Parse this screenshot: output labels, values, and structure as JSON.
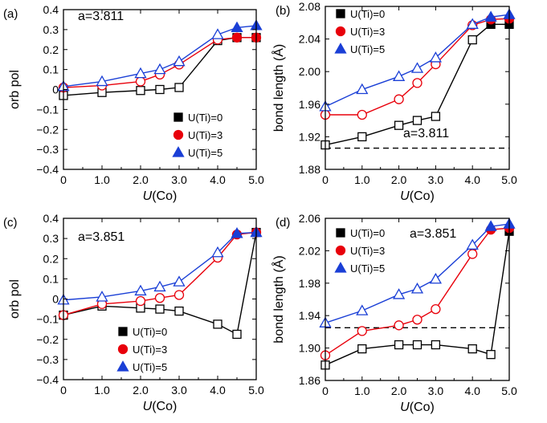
{
  "chart_data": [
    {
      "panel_label": "(a)",
      "type": "line",
      "annotation": "a=3.811",
      "xlabel_italic": "U",
      "xlabel_rest": "(Co)",
      "ylabel": "orb pol",
      "xlim": [
        0,
        5
      ],
      "ylim": [
        -0.4,
        0.4
      ],
      "xticks": [
        "0",
        "1.0",
        "2.0",
        "3.0",
        "4.0",
        "5.0"
      ],
      "xtick_values": [
        0,
        1,
        2,
        3,
        4,
        5
      ],
      "yticks": [
        "−0.4",
        "−0.3",
        "−0.2",
        "−0.1",
        "0",
        "0.1",
        "0.2",
        "0.3",
        "0.4"
      ],
      "ytick_values": [
        -0.4,
        -0.3,
        -0.2,
        -0.1,
        0,
        0.1,
        0.2,
        0.3,
        0.4
      ],
      "legend_position": "bottom-right",
      "x": [
        0,
        1,
        2,
        2.5,
        3,
        4,
        4.5,
        5
      ],
      "series": [
        {
          "name": "U(Ti)=0",
          "color": "#000000",
          "marker": "square",
          "filled_from": 6,
          "values": [
            -0.03,
            -0.015,
            -0.005,
            0.0,
            0.01,
            0.245,
            0.26,
            0.26
          ]
        },
        {
          "name": "U(Ti)=3",
          "color": "#e8000b",
          "marker": "circle",
          "filled_from": 6,
          "values": [
            0.01,
            0.02,
            0.04,
            0.075,
            0.125,
            0.25,
            0.26,
            0.26
          ]
        },
        {
          "name": "U(Ti)=5",
          "color": "#1a3fd6",
          "marker": "triangle",
          "filled_from": 6,
          "values": [
            0.015,
            0.04,
            0.08,
            0.1,
            0.14,
            0.275,
            0.31,
            0.32
          ]
        }
      ]
    },
    {
      "panel_label": "(b)",
      "type": "line",
      "annotation": "a=3.811",
      "xlabel_italic": "U",
      "xlabel_rest": "(Co)",
      "ylabel": "bond length (Å)",
      "xlim": [
        0,
        5
      ],
      "ylim": [
        1.88,
        2.08
      ],
      "xticks": [
        "0",
        "1.0",
        "2.0",
        "3.0",
        "4.0",
        "5.0"
      ],
      "xtick_values": [
        0,
        1,
        2,
        3,
        4,
        5
      ],
      "yticks": [
        "1.88",
        "1.92",
        "1.96",
        "2.00",
        "2.04",
        "2.08"
      ],
      "ytick_values": [
        1.88,
        1.92,
        1.96,
        2.0,
        2.04,
        2.08
      ],
      "legend_position": "top-left",
      "reference_line": 1.906,
      "x": [
        0,
        1,
        2,
        2.5,
        3,
        4,
        4.5,
        5
      ],
      "series": [
        {
          "name": "U(Ti)=0",
          "color": "#000000",
          "marker": "square",
          "filled_from": 6,
          "values": [
            1.91,
            1.92,
            1.934,
            1.94,
            1.945,
            2.039,
            2.058,
            2.058
          ]
        },
        {
          "name": "U(Ti)=3",
          "color": "#e8000b",
          "marker": "circle",
          "filled_from": 6,
          "values": [
            1.947,
            1.947,
            1.966,
            1.986,
            2.009,
            2.057,
            2.064,
            2.065
          ]
        },
        {
          "name": "U(Ti)=5",
          "color": "#1a3fd6",
          "marker": "triangle",
          "filled_from": 6,
          "values": [
            1.957,
            1.978,
            1.994,
            2.004,
            2.017,
            2.058,
            2.067,
            2.07
          ]
        }
      ]
    },
    {
      "panel_label": "(c)",
      "type": "line",
      "annotation": "a=3.851",
      "xlabel_italic": "U",
      "xlabel_rest": "(Co)",
      "ylabel": "orb pol",
      "xlim": [
        0,
        5
      ],
      "ylim": [
        -0.4,
        0.4
      ],
      "xticks": [
        "0",
        "1.0",
        "2.0",
        "3.0",
        "4.0",
        "5.0"
      ],
      "xtick_values": [
        0,
        1,
        2,
        3,
        4,
        5
      ],
      "yticks": [
        "−0.4",
        "−0.3",
        "−0.2",
        "−0.1",
        "0",
        "0.1",
        "0.2",
        "0.3",
        "0.4"
      ],
      "ytick_values": [
        -0.4,
        -0.3,
        -0.2,
        -0.1,
        0,
        0.1,
        0.2,
        0.3,
        0.4
      ],
      "legend_position": "bottom-left",
      "x": [
        0,
        1,
        2,
        2.5,
        3,
        4,
        4.5,
        5
      ],
      "series": [
        {
          "name": "U(Ti)=0",
          "color": "#000000",
          "marker": "square",
          "filled_from": 7,
          "values": [
            -0.08,
            -0.035,
            -0.045,
            -0.05,
            -0.06,
            -0.125,
            -0.175,
            0.33
          ]
        },
        {
          "name": "U(Ti)=3",
          "color": "#e8000b",
          "marker": "circle",
          "filled_from": 6,
          "values": [
            -0.08,
            -0.025,
            -0.01,
            0.005,
            0.02,
            0.205,
            0.32,
            0.33
          ]
        },
        {
          "name": "U(Ti)=5",
          "color": "#1a3fd6",
          "marker": "triangle",
          "filled_from": 6,
          "values": [
            -0.005,
            0.01,
            0.04,
            0.06,
            0.085,
            0.23,
            0.325,
            0.33
          ]
        }
      ]
    },
    {
      "panel_label": "(d)",
      "type": "line",
      "annotation": "a=3.851",
      "xlabel_italic": "U",
      "xlabel_rest": "(Co)",
      "ylabel": "bond length (Å)",
      "xlim": [
        0,
        5
      ],
      "ylim": [
        1.86,
        2.06
      ],
      "xticks": [
        "0",
        "1.0",
        "2.0",
        "3.0",
        "4.0",
        "5.0"
      ],
      "xtick_values": [
        0,
        1,
        2,
        3,
        4,
        5
      ],
      "yticks": [
        "1.86",
        "1.90",
        "1.94",
        "1.98",
        "2.02",
        "2.06"
      ],
      "ytick_values": [
        1.86,
        1.9,
        1.94,
        1.98,
        2.02,
        2.06
      ],
      "legend_position": "top-left",
      "reference_line": 1.925,
      "x": [
        0,
        1,
        2,
        2.5,
        3,
        4,
        4.5,
        5
      ],
      "series": [
        {
          "name": "U(Ti)=0",
          "color": "#000000",
          "marker": "square",
          "filled_from": 7,
          "values": [
            1.879,
            1.899,
            1.904,
            1.904,
            1.904,
            1.899,
            1.892,
            2.044
          ]
        },
        {
          "name": "U(Ti)=3",
          "color": "#e8000b",
          "marker": "circle",
          "filled_from": 6,
          "values": [
            1.891,
            1.921,
            1.928,
            1.935,
            1.948,
            2.016,
            2.046,
            2.048
          ]
        },
        {
          "name": "U(Ti)=5",
          "color": "#1a3fd6",
          "marker": "triangle",
          "filled_from": 6,
          "values": [
            1.931,
            1.946,
            1.966,
            1.973,
            1.985,
            2.027,
            2.05,
            2.053
          ]
        }
      ]
    }
  ]
}
